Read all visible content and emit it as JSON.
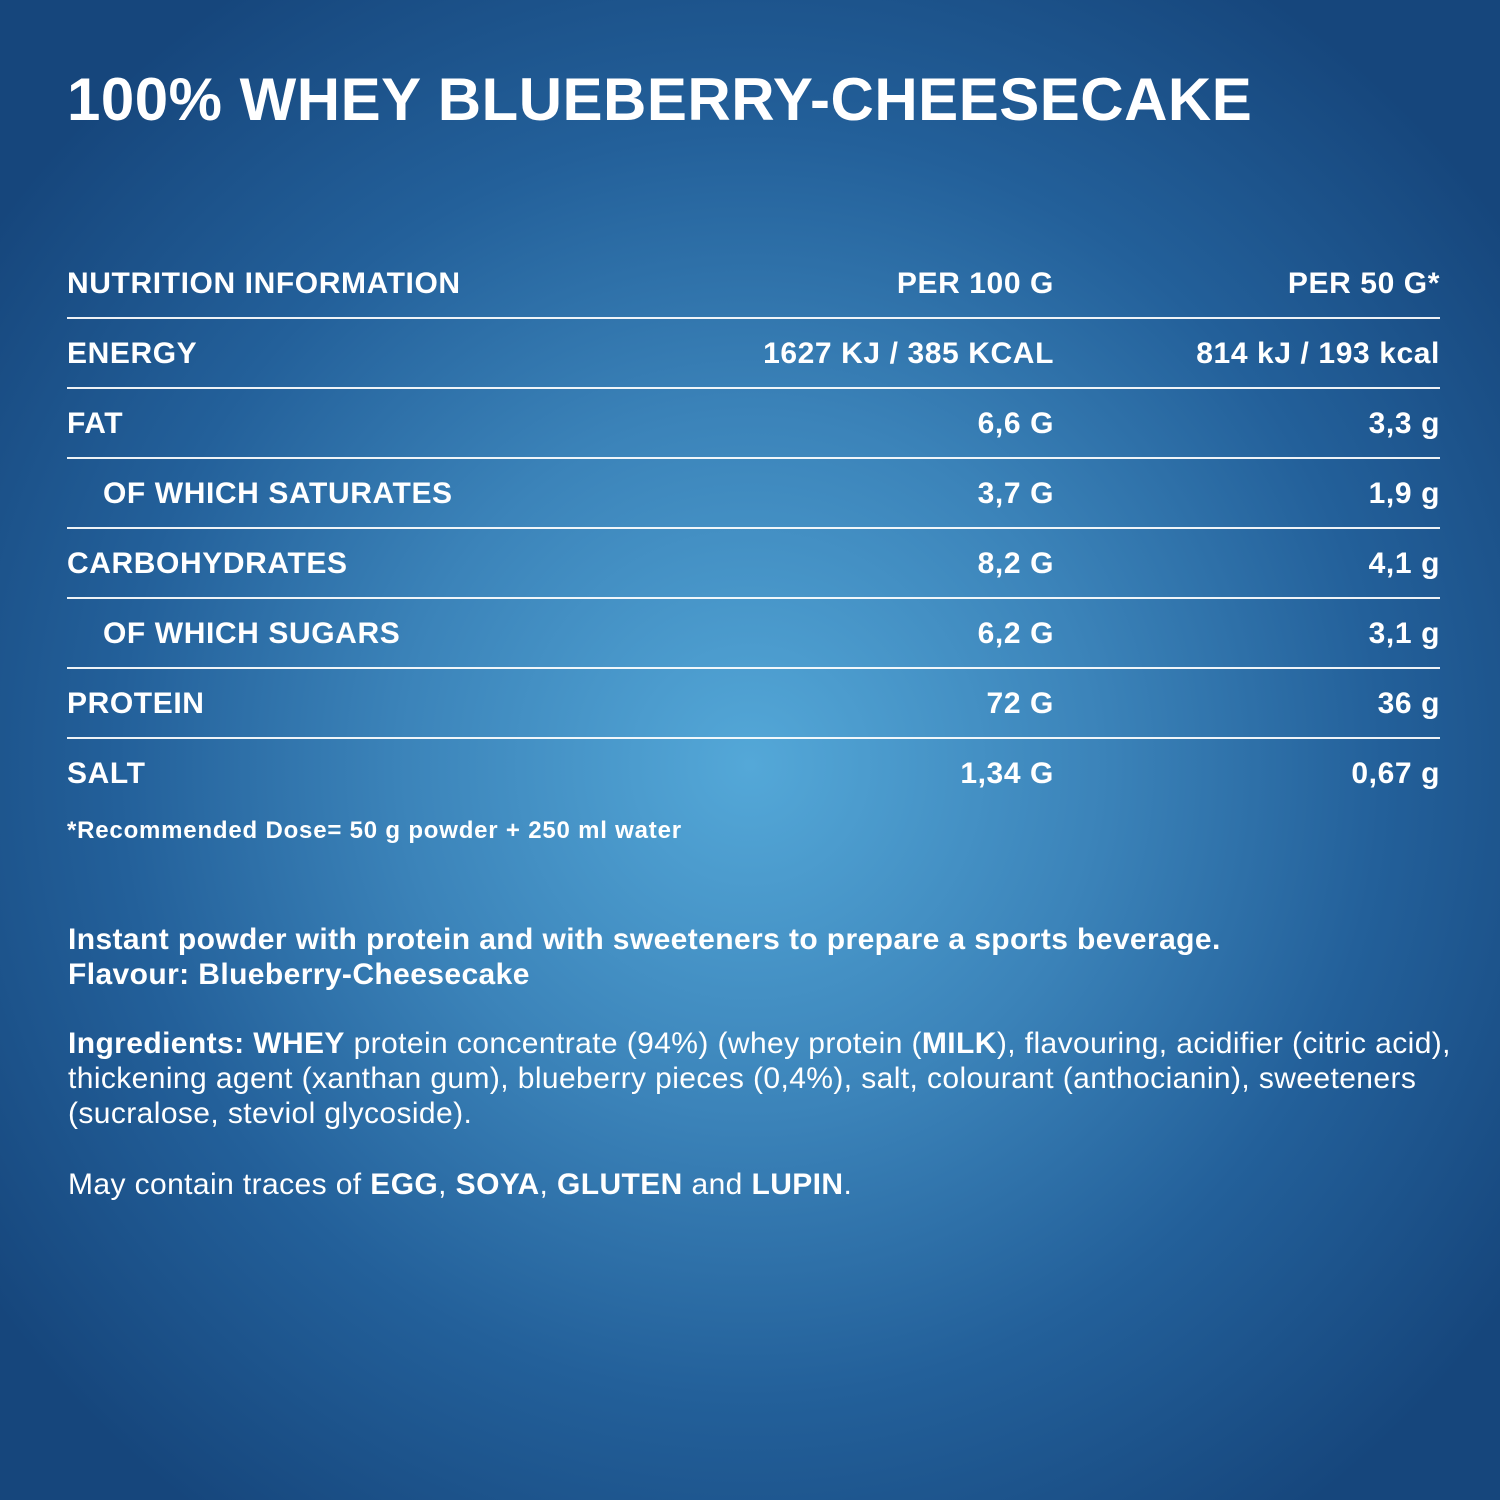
{
  "product": {
    "title": "100% WHEY BLUEBERRY-CHEESECAKE"
  },
  "nutrition": {
    "header": {
      "label": "NUTRITION INFORMATION",
      "col1": "PER 100 G",
      "col2": "PER 50 G*"
    },
    "rows": [
      {
        "label": "ENERGY",
        "per100": "1627 KJ / 385 KCAL",
        "per50": "814 kJ / 193 kcal"
      },
      {
        "label": "FAT",
        "per100": "6,6 G",
        "per50": "3,3 g"
      },
      {
        "label": "OF WHICH SATURATES",
        "per100": "3,7 G",
        "per50": "1,9 g"
      },
      {
        "label": "CARBOHYDRATES",
        "per100": "8,2 G",
        "per50": "4,1 g"
      },
      {
        "label": "OF WHICH SUGARS",
        "per100": "6,2 G",
        "per50": "3,1 g"
      },
      {
        "label": "PROTEIN",
        "per100": "72 G",
        "per50": "36 g"
      },
      {
        "label": "SALT",
        "per100": "1,34 G",
        "per50": "0,67 g"
      }
    ],
    "footnote": "*Recommended Dose= 50 g powder + 250 ml water"
  },
  "description": {
    "line1": "Instant powder with protein and with sweeteners to prepare a sports beverage.",
    "line2": "Flavour: Blueberry-Cheesecake"
  },
  "ingredients": {
    "label": "Ingredients:",
    "whey": "WHEY",
    "part1": " protein concentrate (94%) (whey protein (",
    "milk": "MILK",
    "part2": "), flavouring, acidifier (citric acid), thickening agent (xanthan gum), blueberry pieces (0,4%), salt, colourant (anthocianin), sweeteners (sucralose, steviol glycoside)."
  },
  "traces": {
    "prefix": "May contain traces of ",
    "egg": "EGG",
    "sep1": ", ",
    "soya": "SOYA",
    "sep2": ", ",
    "gluten": "GLUTEN",
    "and": " and ",
    "lupin": "LUPIN",
    "end": "."
  },
  "colors": {
    "background_center": "#54a8d8",
    "background_edge": "#16467c",
    "text": "#ffffff"
  }
}
